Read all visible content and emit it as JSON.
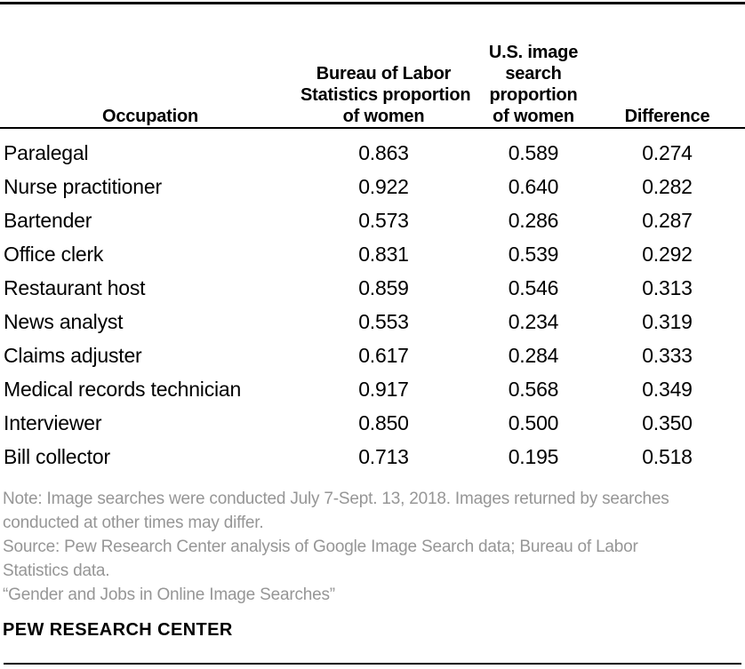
{
  "colors": {
    "text": "#000000",
    "note_gray": "#969696",
    "rule": "#000000",
    "background": "#ffffff"
  },
  "table": {
    "header": {
      "occupation": [
        "Occupation"
      ],
      "bls_proportion": [
        "Bureau of Labor",
        "Statistics proportion",
        "of women"
      ],
      "image_search_proportion": [
        "U.S. image",
        "search",
        "proportion",
        "of women"
      ],
      "difference": [
        "Difference"
      ]
    },
    "rows": [
      {
        "occupation": "Paralegal",
        "bls": "0.863",
        "search": "0.589",
        "difference": "0.274"
      },
      {
        "occupation": "Nurse practitioner",
        "bls": "0.922",
        "search": "0.640",
        "difference": "0.282"
      },
      {
        "occupation": "Bartender",
        "bls": "0.573",
        "search": "0.286",
        "difference": "0.287"
      },
      {
        "occupation": "Office clerk",
        "bls": "0.831",
        "search": "0.539",
        "difference": "0.292"
      },
      {
        "occupation": "Restaurant host",
        "bls": "0.859",
        "search": "0.546",
        "difference": "0.313"
      },
      {
        "occupation": "News analyst",
        "bls": "0.553",
        "search": "0.234",
        "difference": "0.319"
      },
      {
        "occupation": "Claims adjuster",
        "bls": "0.617",
        "search": "0.284",
        "difference": "0.333"
      },
      {
        "occupation": "Medical records technician",
        "bls": "0.917",
        "search": "0.568",
        "difference": "0.349"
      },
      {
        "occupation": "Interviewer",
        "bls": "0.850",
        "search": "0.500",
        "difference": "0.350"
      },
      {
        "occupation": "Bill collector",
        "bls": "0.713",
        "search": "0.195",
        "difference": "0.518"
      }
    ]
  },
  "footer": {
    "note_lines": [
      "Note: Image searches were conducted July 7-Sept. 13, 2018. Images returned by searches",
      "conducted at other times may differ."
    ],
    "source_lines": [
      "Source: Pew Research Center analysis of Google Image Search data; Bureau of Labor",
      "Statistics data."
    ],
    "quote_lines": [
      "“Gender and Jobs in Online Image Searches”"
    ],
    "brand": "PEW RESEARCH CENTER"
  },
  "chart_data": {
    "type": "table",
    "columns": [
      "Occupation",
      "Bureau of Labor Statistics proportion of women",
      "U.S. image search proportion of women",
      "Difference"
    ],
    "rows": [
      [
        "Paralegal",
        0.863,
        0.589,
        0.274
      ],
      [
        "Nurse practitioner",
        0.922,
        0.64,
        0.282
      ],
      [
        "Bartender",
        0.573,
        0.286,
        0.287
      ],
      [
        "Office clerk",
        0.831,
        0.539,
        0.292
      ],
      [
        "Restaurant host",
        0.859,
        0.546,
        0.313
      ],
      [
        "News analyst",
        0.553,
        0.234,
        0.319
      ],
      [
        "Claims adjuster",
        0.617,
        0.284,
        0.333
      ],
      [
        "Medical records technician",
        0.917,
        0.568,
        0.349
      ],
      [
        "Interviewer",
        0.85,
        0.5,
        0.35
      ],
      [
        "Bill collector",
        0.713,
        0.195,
        0.518
      ]
    ],
    "note": "Note: Image searches were conducted July 7-Sept. 13, 2018. Images returned by searches conducted at other times may differ.",
    "source": "Source: Pew Research Center analysis of Google Image Search data; Bureau of Labor Statistics data.",
    "report_title": "“Gender and Jobs in Online Image Searches”",
    "brand": "PEW RESEARCH CENTER"
  }
}
